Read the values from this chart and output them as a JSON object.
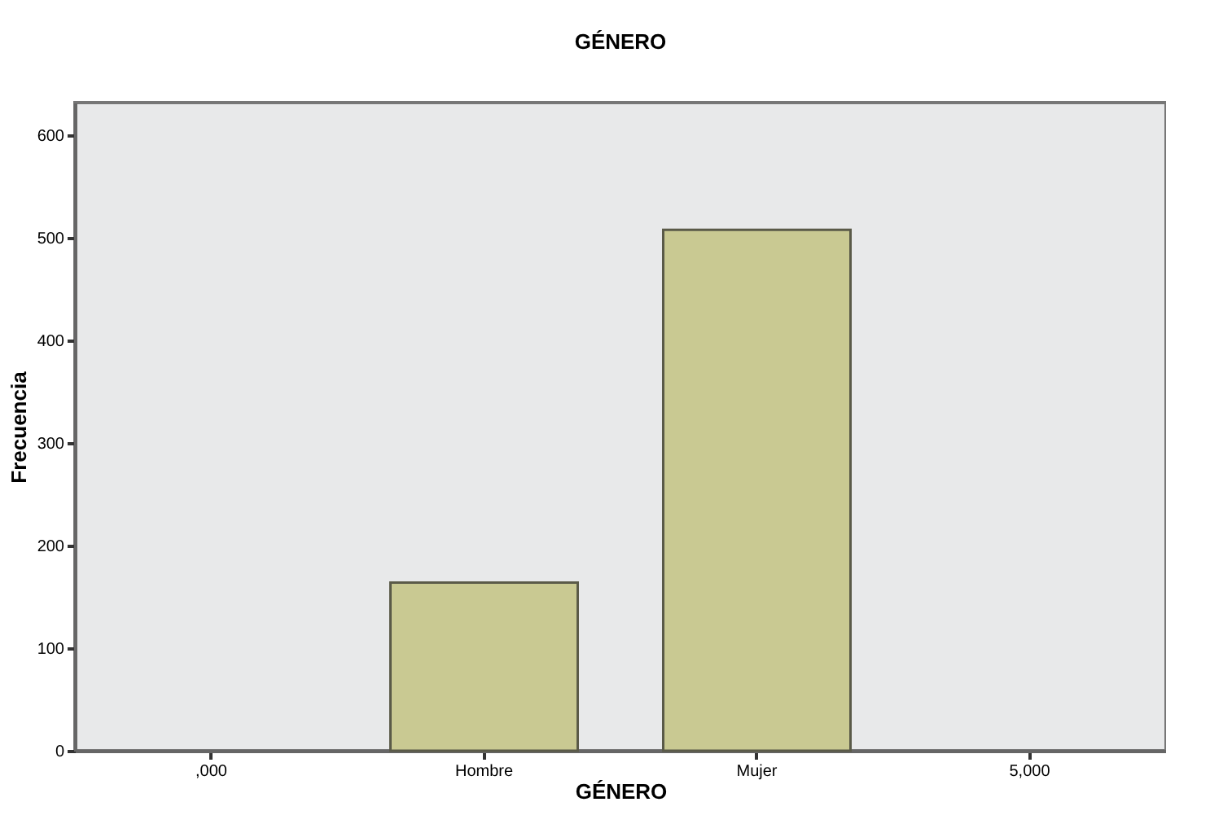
{
  "chart_data": {
    "type": "bar",
    "title": "GÉNERO",
    "xlabel": "GÉNERO",
    "ylabel": "Frecuencia",
    "categories": [
      ",000",
      "Hombre",
      "Mujer",
      "5,000"
    ],
    "values": [
      null,
      164,
      508,
      null
    ],
    "color": "#c9c992",
    "ylim": [
      0,
      632
    ],
    "yticks": [
      0,
      100,
      200,
      300,
      400,
      500,
      600
    ],
    "grid": false
  }
}
